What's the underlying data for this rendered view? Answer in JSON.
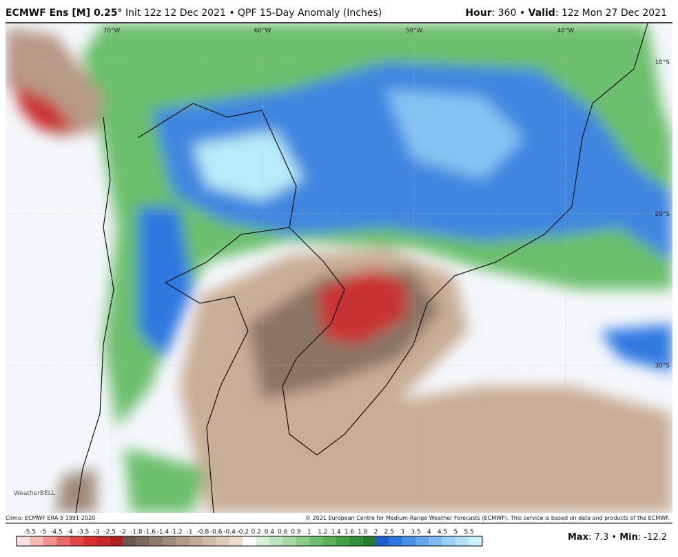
{
  "header": {
    "model": "ECMWF Ens [M] 0.25°",
    "title_rest": "Init 12z 12 Dec 2021 • QPF 15-Day Anomaly (Inches)",
    "hour_label": "Hour",
    "hour": ": 360 •",
    "valid_label": "Valid",
    "valid": ": 12z Mon 27 Dec 2021"
  },
  "map": {
    "lon_labels": [
      "70°W",
      "60°W",
      "50°W",
      "40°W"
    ],
    "lat_labels": [
      "10°S",
      "20°S",
      "30°S"
    ],
    "watermark": "WeatherBELL"
  },
  "footer": {
    "climo": "Climo: ECMWF ERA-5 1991-2020",
    "copyright": "© 2021 European Centre for Medium-Range Weather Forecasts (ECMWF). This service is based on data and products of the ECMWF."
  },
  "colorbar": {
    "labels": [
      "-5.5",
      "-5",
      "-4.5",
      "-4",
      "-3.5",
      "-3",
      "-2.5",
      "-2",
      "-1.8",
      "-1.6",
      "-1.4",
      "-1.2",
      "-1",
      "-0.8",
      "-0.6",
      "-0.4",
      "-0.2",
      "0.2",
      "0.4",
      "0.6",
      "0.8",
      "1",
      "1.2",
      "1.4",
      "1.6",
      "1.8",
      "2",
      "2.5",
      "3",
      "3.5",
      "4",
      "4.5",
      "5",
      "5.5"
    ],
    "colors": [
      "#fde0e0",
      "#f7b8b8",
      "#f09090",
      "#e86b6b",
      "#e04848",
      "#d83030",
      "#c82828",
      "#b02020",
      "#6b5a52",
      "#7d6a5f",
      "#8f7b6e",
      "#a08a7b",
      "#b09a88",
      "#c1aa96",
      "#d0bba6",
      "#decab7",
      "#ebdccd",
      "#ffffff",
      "#d8f0d8",
      "#bfe5bf",
      "#a5d9a5",
      "#8bcc8b",
      "#70bf70",
      "#58b058",
      "#44a044",
      "#358f3a",
      "#2a7d30",
      "#1e5fd0",
      "#2f78e0",
      "#4a8fe8",
      "#66a6ee",
      "#80bcf2",
      "#9ad0f5",
      "#b3e2f8",
      "#cdf2fb"
    ]
  },
  "stats": {
    "max_label": "Max",
    "max": ": 7.3 •",
    "min_label": "Min",
    "min": ": -12.2"
  }
}
